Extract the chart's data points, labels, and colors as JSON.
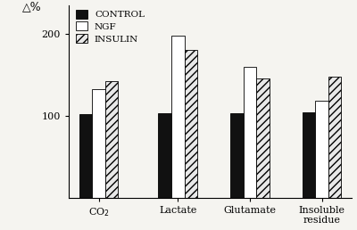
{
  "categories": [
    "CO$_2$",
    "Lactate",
    "Glutamate",
    "Insoluble\nresidue"
  ],
  "series": {
    "CONTROL": [
      102,
      103,
      103,
      104
    ],
    "NGF": [
      132,
      198,
      160,
      118
    ],
    "INSULIN": [
      142,
      180,
      145,
      148
    ]
  },
  "hatch_pattern": "////",
  "ylabel": "△%",
  "yticks": [
    100,
    200
  ],
  "ylim": [
    0,
    235
  ],
  "background_color": "#f5f4f0",
  "bar_width": 0.18,
  "legend_labels": [
    "CONTROL",
    "NGF",
    "INSULIN"
  ],
  "tick_fontsize": 8,
  "legend_fontsize": 7.5,
  "figsize": [
    4.0,
    2.58
  ],
  "dpi": 100
}
